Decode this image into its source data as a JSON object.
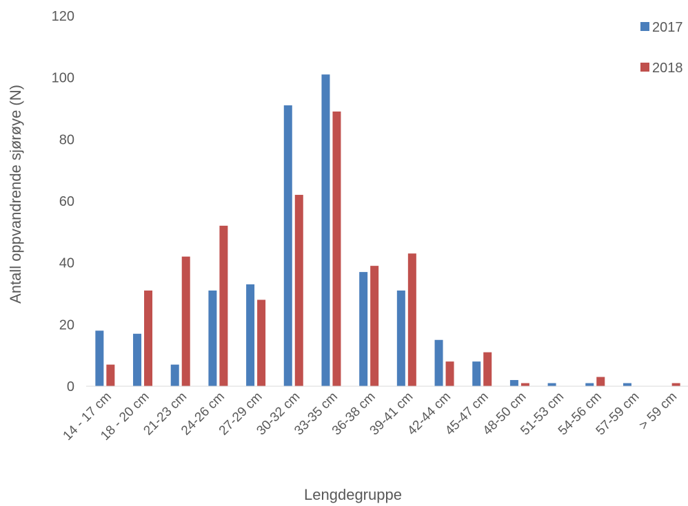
{
  "chart_data": {
    "type": "bar",
    "title": "",
    "xlabel": "Lengdegruppe",
    "ylabel": "Antall oppvandrende sjørøye (N)",
    "ylim": [
      0,
      120
    ],
    "yticks": [
      0,
      20,
      40,
      60,
      80,
      100,
      120
    ],
    "grid": false,
    "legend_position": "top-right",
    "categories": [
      "14 - 17 cm",
      "18 - 20 cm",
      "21-23 cm",
      "24-26 cm",
      "27-29 cm",
      "30-32 cm",
      "33-35 cm",
      "36-38 cm",
      "39-41 cm",
      "42-44 cm",
      "45-47 cm",
      "48-50 cm",
      "51-53 cm",
      "54-56 cm",
      "57-59 cm",
      "> 59 cm"
    ],
    "series": [
      {
        "name": "2017",
        "color": "#4a7ebb",
        "values": [
          18,
          17,
          7,
          31,
          33,
          91,
          101,
          37,
          31,
          15,
          8,
          2,
          1,
          1,
          1,
          0
        ]
      },
      {
        "name": "2018",
        "color": "#c0504d",
        "values": [
          7,
          31,
          42,
          52,
          28,
          62,
          89,
          39,
          43,
          8,
          11,
          1,
          0,
          3,
          0,
          1
        ]
      }
    ]
  }
}
